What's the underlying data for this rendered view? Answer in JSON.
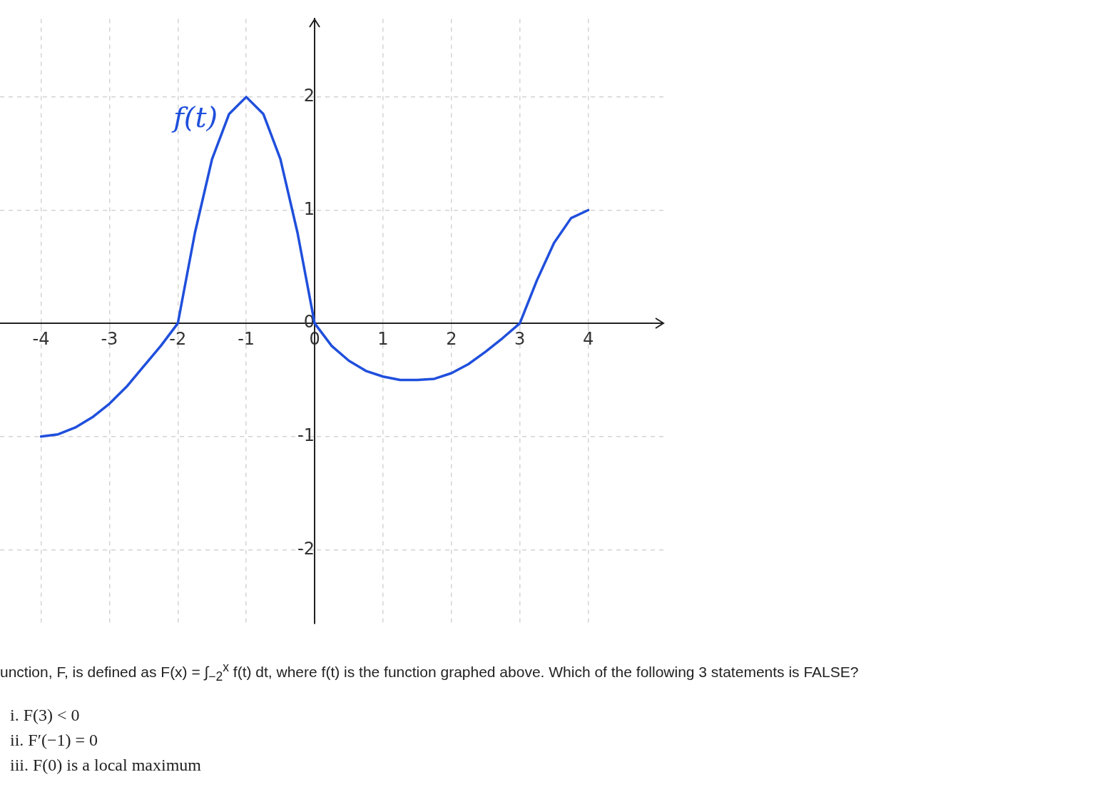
{
  "chart_data": {
    "type": "line",
    "x": [
      -4,
      -3.75,
      -3.5,
      -3.25,
      -3,
      -2.75,
      -2.5,
      -2.25,
      -2,
      -1.75,
      -1.5,
      -1.25,
      -1,
      -0.75,
      -0.5,
      -0.25,
      0,
      0.25,
      0.5,
      0.75,
      1,
      1.25,
      1.5,
      1.75,
      2,
      2.25,
      2.5,
      2.75,
      3,
      3.25,
      3.5,
      3.75,
      4
    ],
    "series": [
      {
        "name": "f(t)",
        "color": "#1f4fdc",
        "values": [
          -1,
          -0.98,
          -0.92,
          -0.83,
          -0.71,
          -0.56,
          -0.38,
          -0.2,
          0,
          0.8,
          1.45,
          1.85,
          2,
          1.85,
          1.45,
          0.8,
          0,
          -0.2,
          -0.33,
          -0.42,
          -0.47,
          -0.5,
          -0.5,
          -0.49,
          -0.44,
          -0.36,
          -0.25,
          -0.13,
          0,
          0.38,
          0.71,
          0.93,
          1
        ]
      }
    ],
    "xlim": [
      -4.6,
      5.1
    ],
    "ylim": [
      -2.65,
      2.69
    ],
    "xticks": [
      -4,
      -3,
      -2,
      -1,
      0,
      1,
      2,
      3,
      4
    ],
    "yticks": [
      -2,
      -1,
      0,
      1,
      2
    ],
    "grid": true,
    "legend": false,
    "marker": "none",
    "line_style": "solid",
    "annotations": [
      "unction, F, is defined as F(x) = ∫$_{−2}$$^{x}$ f(t) dt, where f(t) is the function graphed above. Which of the following 3 statements is FALSE?",
      "i. F(3) < 0",
      "ii. F′(−1) = 0",
      "iii. F(0) is a local maximum"
    ]
  }
}
